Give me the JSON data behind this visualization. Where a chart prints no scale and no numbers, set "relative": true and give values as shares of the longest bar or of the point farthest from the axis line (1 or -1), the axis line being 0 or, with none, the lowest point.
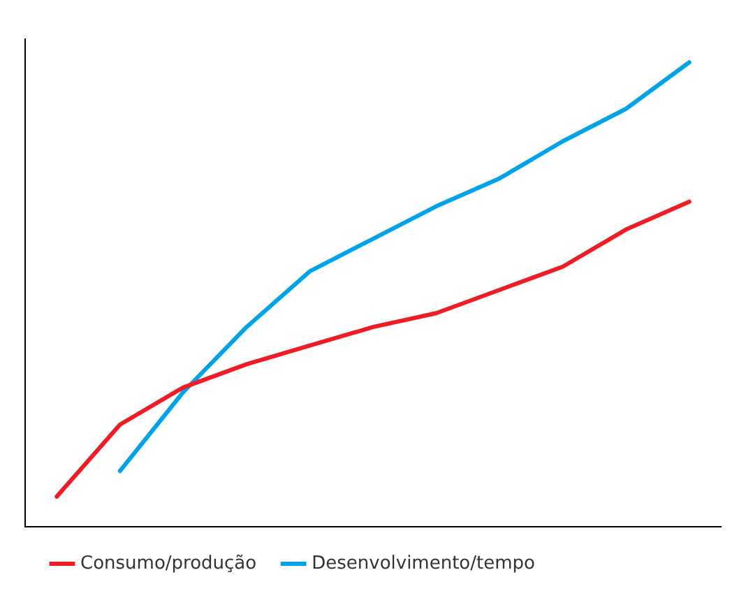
{
  "chart_data": {
    "type": "line",
    "relative": true,
    "legend": "bottom",
    "marker": "none",
    "line_style": "solid",
    "categories": [
      null,
      null,
      null,
      null,
      null,
      null,
      null,
      null,
      null,
      null,
      null
    ],
    "series": [
      {
        "name": "Consumo/produção",
        "color": "#ee1c24",
        "values": [
          0.065,
          0.22,
          0.3,
          0.35,
          0.39,
          0.43,
          0.46,
          0.51,
          0.56,
          0.64,
          0.7
        ]
      },
      {
        "name": "Desenvolvimento/tempo",
        "color": "#00a2e8",
        "values": [
          null,
          0.12,
          0.29,
          0.43,
          0.55,
          0.62,
          0.69,
          0.75,
          0.83,
          0.9,
          1
        ]
      }
    ]
  }
}
